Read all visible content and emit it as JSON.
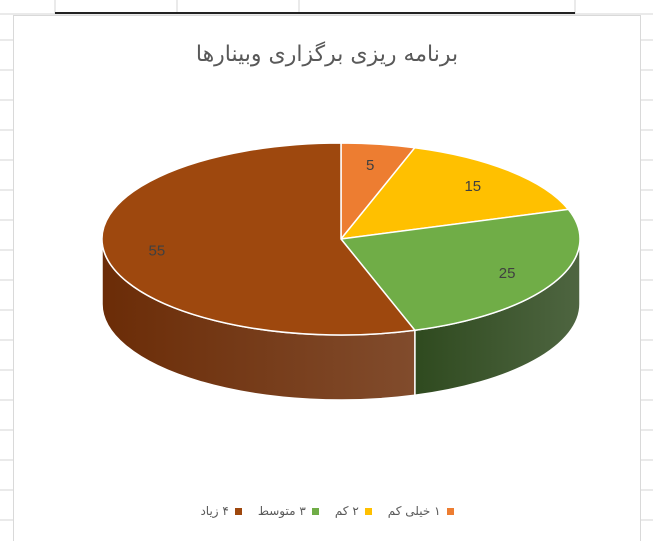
{
  "chart_data": {
    "type": "pie",
    "title": "برنامه ریزی برگزاری وبینارها",
    "labels": [
      "۱ خیلی کم",
      "۲ کم",
      "۳ متوسط",
      "۴ زیاد"
    ],
    "values": [
      5,
      15,
      25,
      55
    ],
    "colors": [
      "#ED7D31",
      "#FFC000",
      "#70AD47",
      "#9E480E"
    ],
    "side_colors": [
      "#B35716",
      "#B38600",
      "#2F4A1F",
      "#6B2C07"
    ],
    "legend_position": "bottom",
    "three_d": true,
    "data_labels": [
      "5",
      "15",
      "25",
      "55"
    ]
  }
}
